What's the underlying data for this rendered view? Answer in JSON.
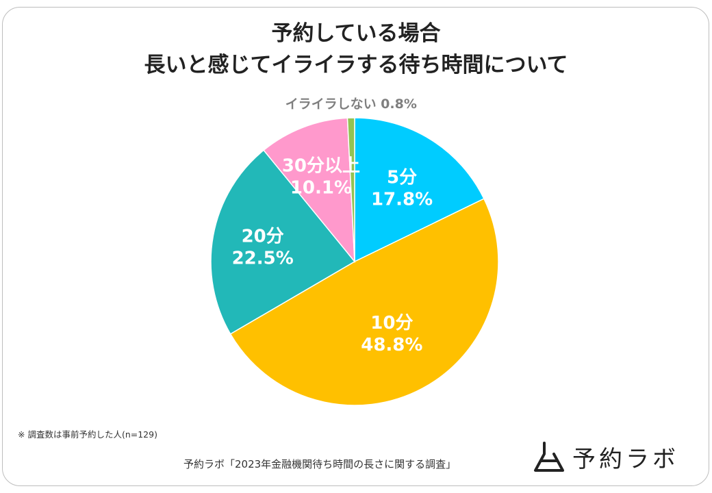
{
  "title": {
    "line1": "予約している場合",
    "line2": "長いと感じてイライラする待ち時間について"
  },
  "chart_data": {
    "type": "pie",
    "title": "予約している場合 長いと感じてイライラする待ち時間について",
    "start": "12 o'clock",
    "direction": "clockwise",
    "slices": [
      {
        "label": "5分",
        "value": 17.8,
        "value_label": "17.8%",
        "color": "#00CCFF"
      },
      {
        "label": "10分",
        "value": 48.8,
        "value_label": "48.8%",
        "color": "#FFC000"
      },
      {
        "label": "20分",
        "value": 22.5,
        "value_label": "22.5%",
        "color": "#22B8B8"
      },
      {
        "label": "30分以上",
        "value": 10.1,
        "value_label": "10.1%",
        "color": "#FF99CC"
      },
      {
        "label": "イライラしない",
        "value": 0.8,
        "value_label": "0.8%",
        "color": "#92C353"
      }
    ]
  },
  "footer": {
    "note": "※ 調査数は事前予約した人(n=129)",
    "source": "予約ラボ「2023年金融機関待ち時間の長さに関する調査」"
  },
  "brand": {
    "name": "予約ラボ",
    "logo_icon": "lab-flask-icon"
  }
}
